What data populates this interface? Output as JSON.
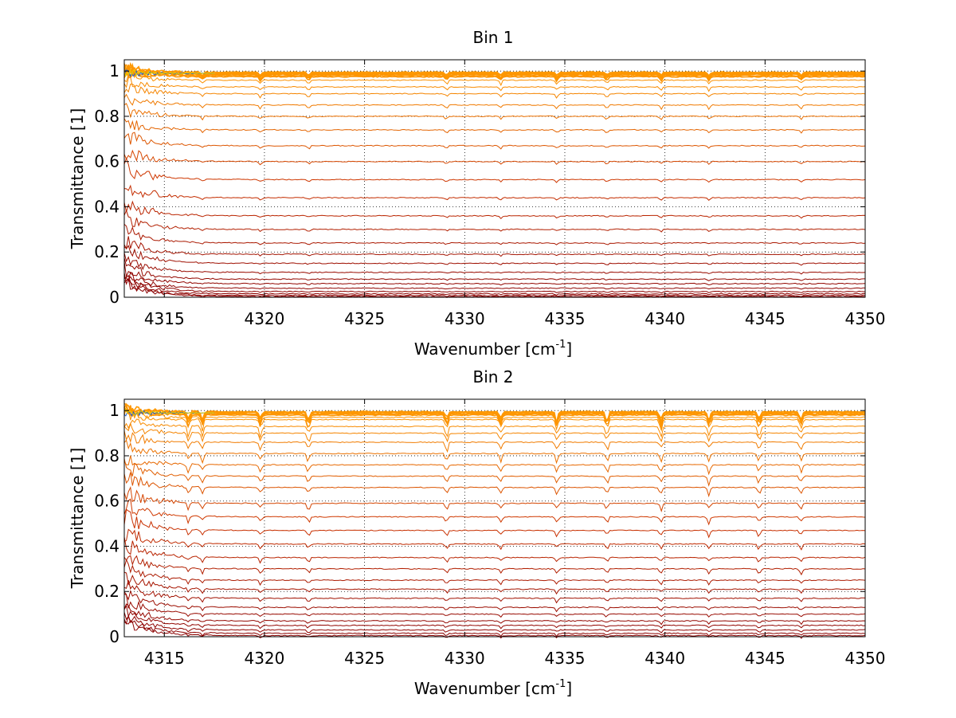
{
  "chart_data": [
    {
      "type": "line",
      "title": "Bin 1",
      "xlabel": "Wavenumber [cm",
      "xlabel_sup": "-1",
      "xlabel_tail": "]",
      "ylabel": "Transmittance [1]",
      "xlim": [
        4313,
        4350
      ],
      "ylim": [
        0,
        1.05
      ],
      "grid": true,
      "xticks": [
        4315,
        4320,
        4325,
        4330,
        4335,
        4340,
        4345,
        4350
      ],
      "yticks": [
        0,
        0.2,
        0.4,
        0.6,
        0.8,
        1
      ],
      "xtick_labels": [
        "4315",
        "4320",
        "4325",
        "4330",
        "4335",
        "4340",
        "4345",
        "4350"
      ],
      "ytick_labels": [
        "0",
        "0.2",
        "0.4",
        "0.6",
        "0.8",
        "1"
      ],
      "series_levels": [
        0.995,
        0.993,
        0.99,
        0.988,
        0.985,
        0.98,
        0.975,
        0.96,
        0.93,
        0.9,
        0.85,
        0.8,
        0.74,
        0.67,
        0.6,
        0.52,
        0.44,
        0.36,
        0.3,
        0.24,
        0.19,
        0.15,
        0.11,
        0.08,
        0.06,
        0.04,
        0.025,
        0.015,
        0.008,
        0.003
      ],
      "absorption_lines": [
        4316.9,
        4319.8,
        4322.2,
        4329.1,
        4331.8,
        4334.6,
        4337.1,
        4339.8,
        4342.2,
        4346.8
      ],
      "line_depth": 0.012
    },
    {
      "type": "line",
      "title": "Bin 2",
      "xlabel": "Wavenumber [cm",
      "xlabel_sup": "-1",
      "xlabel_tail": "]",
      "ylabel": "Transmittance [1]",
      "xlim": [
        4313,
        4350
      ],
      "ylim": [
        0,
        1.05
      ],
      "grid": true,
      "xticks": [
        4315,
        4320,
        4325,
        4330,
        4335,
        4340,
        4345,
        4350
      ],
      "yticks": [
        0,
        0.2,
        0.4,
        0.6,
        0.8,
        1
      ],
      "xtick_labels": [
        "4315",
        "4320",
        "4325",
        "4330",
        "4335",
        "4340",
        "4345",
        "4350"
      ],
      "ytick_labels": [
        "0",
        "0.2",
        "0.4",
        "0.6",
        "0.8",
        "1"
      ],
      "series_levels": [
        0.995,
        0.993,
        0.99,
        0.985,
        0.98,
        0.97,
        0.96,
        0.93,
        0.9,
        0.86,
        0.81,
        0.76,
        0.71,
        0.66,
        0.59,
        0.53,
        0.47,
        0.41,
        0.35,
        0.3,
        0.25,
        0.21,
        0.17,
        0.13,
        0.1,
        0.07,
        0.05,
        0.03,
        0.015,
        0.005
      ],
      "absorption_lines": [
        4316.2,
        4316.9,
        4319.8,
        4322.2,
        4329.1,
        4331.8,
        4334.6,
        4337.1,
        4339.8,
        4342.2,
        4344.7,
        4346.8
      ],
      "line_depth": 0.03
    }
  ],
  "colors": {
    "series_dark": "#8b0000",
    "series_mid": "#cc3300",
    "series_light": "#ff9900",
    "noise_blue": "#1f5fd0",
    "noise_yellow": "#e8d000",
    "grid": "#000000"
  }
}
